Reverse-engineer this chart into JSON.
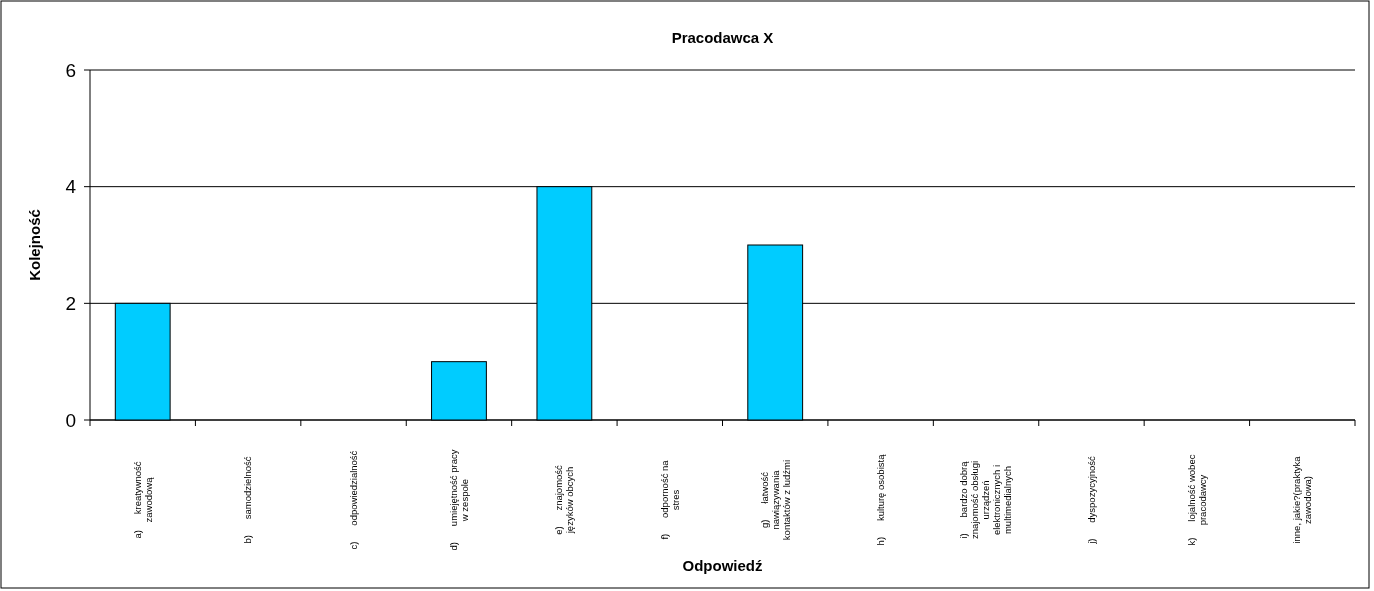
{
  "chart_data": {
    "type": "bar",
    "title": "Pracodawca X",
    "xlabel": "Odpowiedź",
    "ylabel": "Kolejność",
    "categories": [
      "a)      kreatywność\nzawodową",
      "b)      samodzielność",
      "c)      odpowiedzialność",
      "d)      umiejętność pracy\nw zespole",
      "e)      znajomość\njęzyków obcych",
      "f)      odporność na\nstres",
      "g)      łatwość\nnawiązywania\nkontaktów z ludźmi",
      "h)      kulturę osobistą",
      "i)      bardzo dobrą\nznajomość obsługi\nurządzeń\nelektronicznych i\nmultimedialnych",
      "j)      dyspozycyjność",
      "k)      lojalność wobec\npracodawcy",
      "inne, jakie?(praktyka\nzawodowa)"
    ],
    "values": [
      2,
      0,
      0,
      1,
      4,
      0,
      3,
      0,
      0,
      0,
      0,
      0
    ],
    "color": "#00ccff",
    "ylim": [
      0,
      6
    ],
    "yticks": [
      0,
      2,
      4,
      6
    ],
    "grid": "y"
  }
}
